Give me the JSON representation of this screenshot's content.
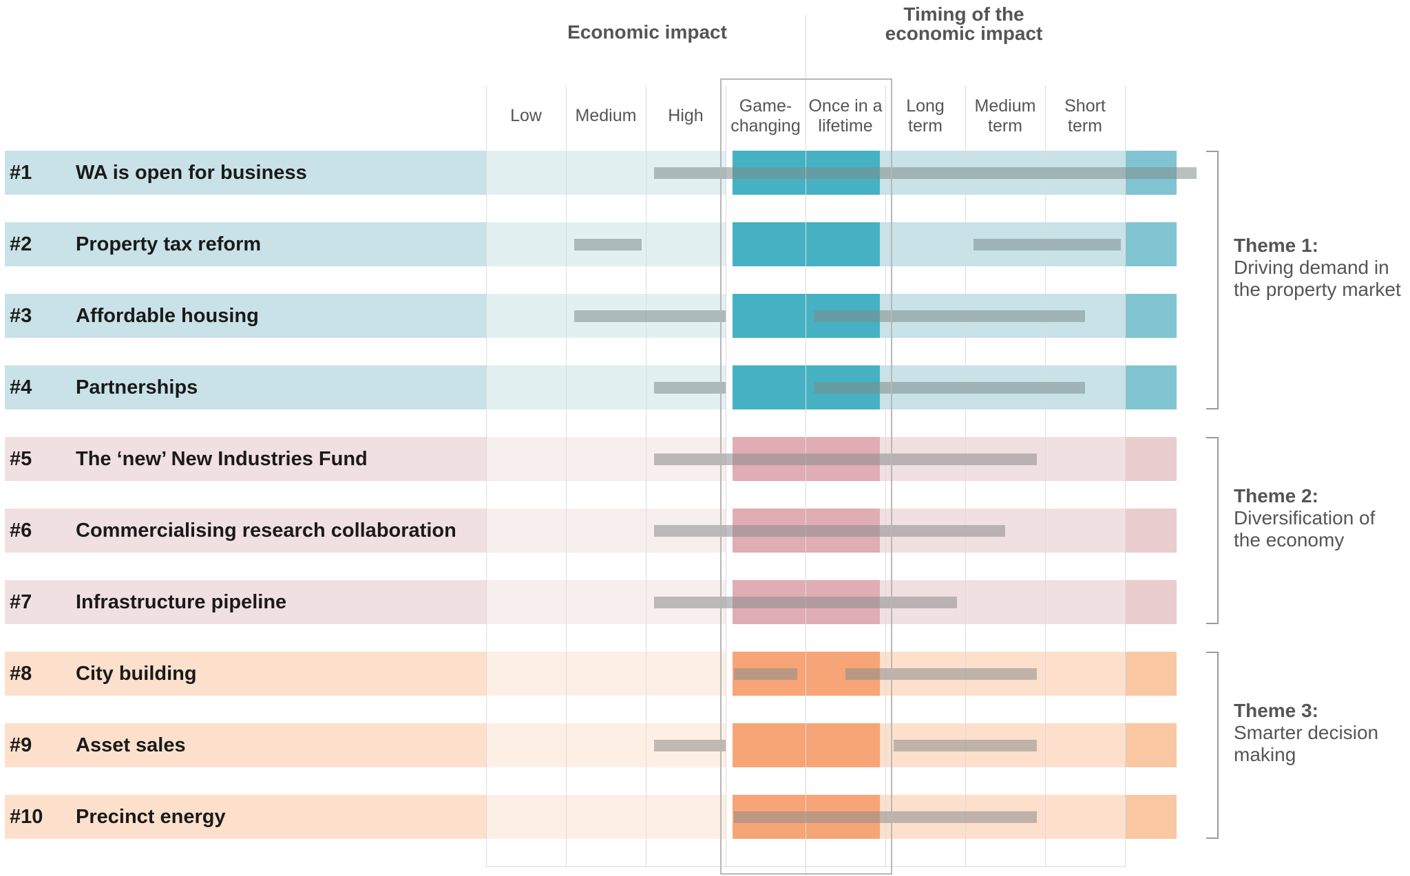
{
  "header": {
    "economic_impact": "Economic impact",
    "timing_line1": "Timing of the",
    "timing_line2": "economic impact"
  },
  "columns": [
    {
      "line1": "Low",
      "line2": ""
    },
    {
      "line1": "Medium",
      "line2": ""
    },
    {
      "line1": "High",
      "line2": ""
    },
    {
      "line1": "Game-",
      "line2": "changing"
    },
    {
      "line1": "Once in a",
      "line2": "lifetime"
    },
    {
      "line1": "Long",
      "line2": "term"
    },
    {
      "line1": "Medium",
      "line2": "term"
    },
    {
      "line1": "Short",
      "line2": "term"
    }
  ],
  "colors": {
    "theme1": {
      "label_bg": "#c8e2e7",
      "cell_bg": "#e2f0f2",
      "mid_bg": "#c8e2e7",
      "highlight": "#45b1c2",
      "end": "#80c4d1",
      "bar": "#7f8c8d"
    },
    "theme2": {
      "label_bg": "#f1e0e1",
      "cell_bg": "#f7eeee",
      "mid_bg": "#f1e0e1",
      "highlight": "#dfadb3",
      "end": "#e9cdcf",
      "bar": "#8c8c8c"
    },
    "theme3": {
      "label_bg": "#fde0cc",
      "cell_bg": "#feefe4",
      "mid_bg": "#fde0cc",
      "highlight": "#f7a577",
      "end": "#fac7a3",
      "bar": "#8c8c8c"
    }
  },
  "themes": [
    {
      "key": "theme1",
      "title": "Theme 1:",
      "desc": [
        "Driving demand in",
        "the property market"
      ]
    },
    {
      "key": "theme2",
      "title": "Theme 2:",
      "desc": [
        "Diversification of",
        "the economy"
      ]
    },
    {
      "key": "theme3",
      "title": "Theme 3:",
      "desc": [
        "Smarter decision",
        "making"
      ]
    }
  ],
  "chart_data": {
    "type": "table",
    "title": "",
    "impact_scale": [
      "Low",
      "Medium",
      "High",
      "Game-changing",
      "Once in a lifetime"
    ],
    "timing_scale": [
      "Once in a lifetime",
      "Long term",
      "Medium term",
      "Short term"
    ],
    "rows": [
      {
        "num": "#1",
        "name": "WA is open for business",
        "theme": "theme1",
        "bars": [
          [
            2.1,
            8.9
          ]
        ]
      },
      {
        "num": "#2",
        "name": "Property tax reform",
        "theme": "theme1",
        "bars": [
          [
            1.1,
            1.95
          ],
          [
            6.1,
            7.95
          ]
        ]
      },
      {
        "num": "#3",
        "name": "Affordable housing",
        "theme": "theme1",
        "bars": [
          [
            1.1,
            3.0
          ],
          [
            4.1,
            7.5
          ]
        ]
      },
      {
        "num": "#4",
        "name": "Partnerships",
        "theme": "theme1",
        "bars": [
          [
            2.1,
            3.0
          ],
          [
            4.1,
            7.5
          ]
        ]
      },
      {
        "num": "#5",
        "name": "The ‘new’ New Industries Fund",
        "theme": "theme2",
        "bars": [
          [
            2.1,
            6.9
          ]
        ]
      },
      {
        "num": "#6",
        "name": "Commercialising research collaboration",
        "theme": "theme2",
        "bars": [
          [
            2.1,
            6.5
          ]
        ]
      },
      {
        "num": "#7",
        "name": "Infrastructure pipeline",
        "theme": "theme2",
        "bars": [
          [
            2.1,
            5.9
          ]
        ]
      },
      {
        "num": "#8",
        "name": "City building",
        "theme": "theme3",
        "bars": [
          [
            3.1,
            3.9
          ],
          [
            4.5,
            6.9
          ]
        ]
      },
      {
        "num": "#9",
        "name": "Asset sales",
        "theme": "theme3",
        "bars": [
          [
            2.1,
            3.0
          ],
          [
            5.1,
            6.9
          ]
        ]
      },
      {
        "num": "#10",
        "name": "Precinct energy",
        "theme": "theme3",
        "bars": [
          [
            3.1,
            6.9
          ]
        ]
      }
    ]
  }
}
